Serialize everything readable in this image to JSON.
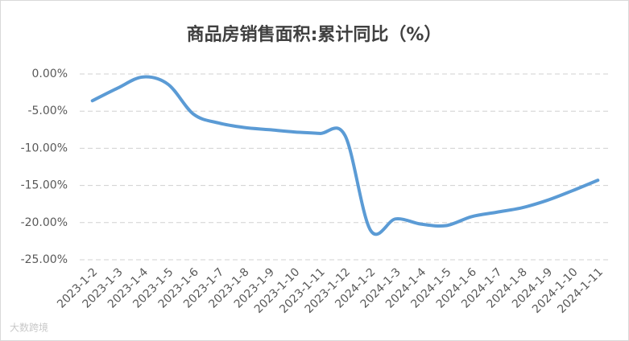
{
  "chart_data": {
    "type": "line",
    "title": "商品房销售面积:累计同比（%）",
    "categories": [
      "2023-1-2",
      "2023-1-3",
      "2023-1-4",
      "2023-1-5",
      "2023-1-6",
      "2023-1-7",
      "2023-1-8",
      "2023-1-9",
      "2023-1-10",
      "2023-1-11",
      "2023-1-12",
      "2024-1-2",
      "2024-1-3",
      "2024-1-4",
      "2024-1-5",
      "2024-1-6",
      "2024-1-7",
      "2024-1-8",
      "2024-1-9",
      "2024-1-10",
      "2024-1-11"
    ],
    "series": [
      {
        "name": "商品房销售面积:累计同比",
        "color": "#5b9bd5",
        "values": [
          -3.6,
          -1.9,
          -0.4,
          -1.4,
          -5.4,
          -6.6,
          -7.2,
          -7.5,
          -7.8,
          -8.0,
          -8.3,
          -21.0,
          -19.5,
          -20.2,
          -20.4,
          -19.2,
          -18.6,
          -18.0,
          -17.0,
          -15.7,
          -14.3
        ]
      }
    ],
    "ylim": [
      -25,
      0
    ],
    "yticks": [
      {
        "value": 0,
        "label": "0.00%"
      },
      {
        "value": -5,
        "label": "-5.00%"
      },
      {
        "value": -10,
        "label": "-10.00%"
      },
      {
        "value": -15,
        "label": "-15.00%"
      },
      {
        "value": -20,
        "label": "-20.00%"
      },
      {
        "value": -25,
        "label": "-25.00%"
      }
    ],
    "grid": true,
    "watermark": "大数跨境"
  }
}
